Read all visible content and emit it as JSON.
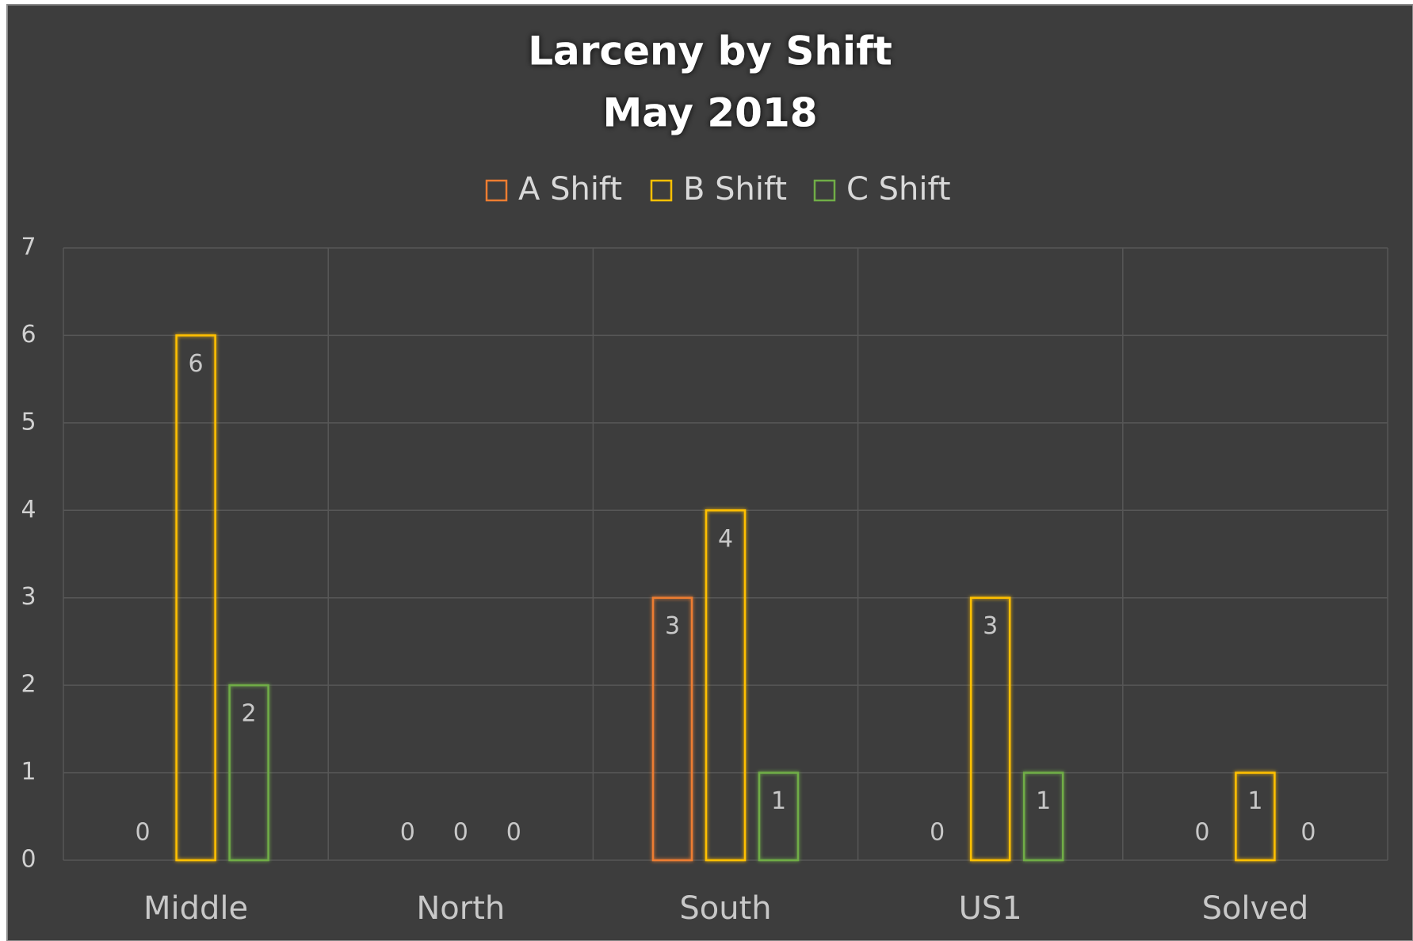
{
  "chart_data": {
    "type": "bar",
    "title": "Larceny by Shift",
    "subtitle": "May 2018",
    "categories": [
      "Middle",
      "North",
      "South",
      "US1",
      "Solved"
    ],
    "series": [
      {
        "name": "A Shift",
        "color": "#ed7d31",
        "values": [
          0,
          0,
          3,
          0,
          0
        ]
      },
      {
        "name": "B Shift",
        "color": "#ffc000",
        "values": [
          6,
          0,
          4,
          3,
          1
        ]
      },
      {
        "name": "C Shift",
        "color": "#70ad47",
        "values": [
          2,
          0,
          1,
          1,
          0
        ]
      }
    ],
    "ylim": [
      0,
      7
    ],
    "yticks": [
      0,
      1,
      2,
      3,
      4,
      5,
      6,
      7
    ],
    "grid": true,
    "legend": "top"
  }
}
